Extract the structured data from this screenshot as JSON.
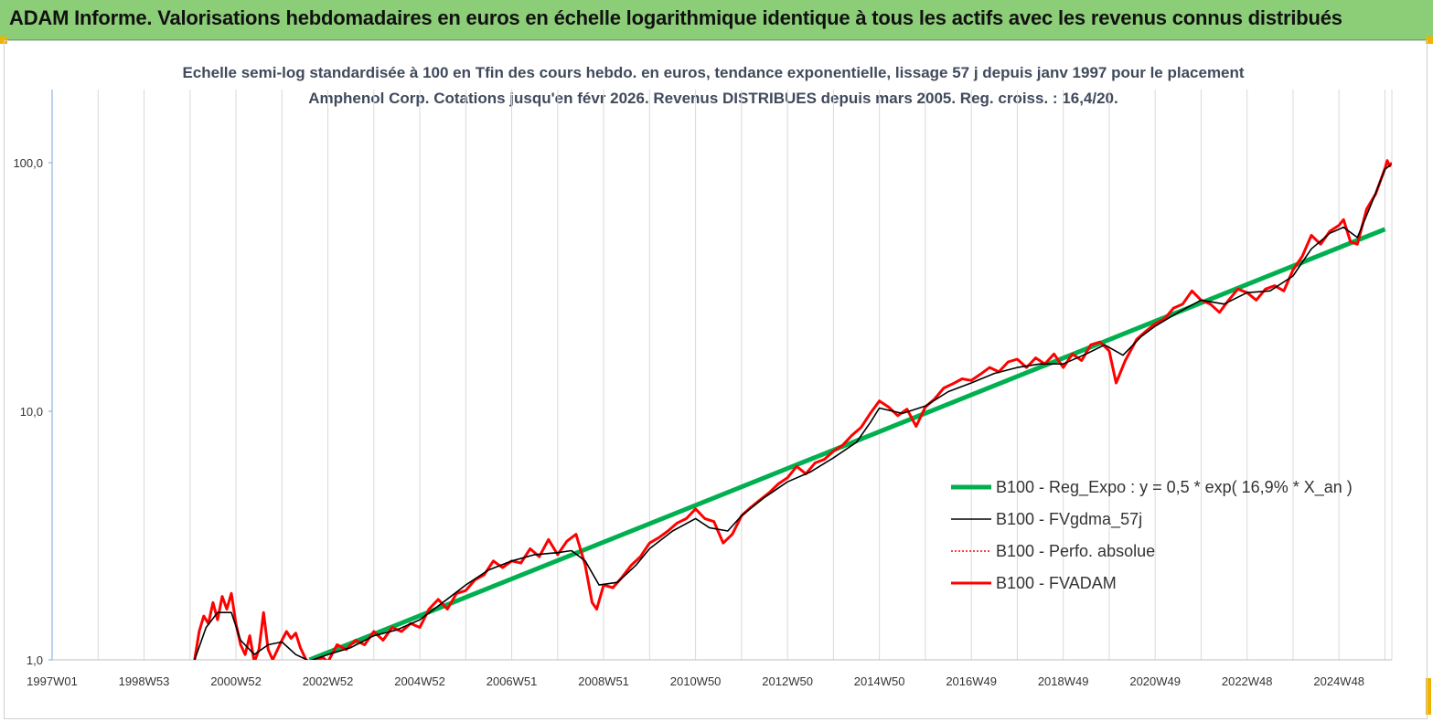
{
  "header": {
    "title": "ADAM Informe. Valorisations hebdomadaires en euros en échelle logarithmique identique à tous les actifs avec les revenus connus distribués"
  },
  "colors": {
    "banner": "#8ccd78",
    "reg_expo": "#00b050",
    "fvgdma": "#000000",
    "perfo": "#ff0000",
    "fvadam": "#ff0000",
    "grid": "#d9d9d9"
  },
  "chart_data": {
    "type": "line",
    "title": "Echelle semi-log standardisée à 100 en Tfin des cours hebdo. en euros, tendance exponentielle, lissage 57 j depuis janv 1997 pour le placement Amphenol Corp. Cotations jusqu'en févr 2026. Revenus DISTRIBUES depuis mars 2005. Reg. croiss. : 16,4/20.",
    "y_scale": "log",
    "ylim": [
      1,
      180
    ],
    "xlim": [
      1997.0,
      2026.15
    ],
    "grid": "vertical",
    "legend_position": "right",
    "y_ticks": [
      {
        "value": 1,
        "label": "1,0"
      },
      {
        "value": 10,
        "label": "10,0"
      },
      {
        "value": 100,
        "label": "100,0"
      }
    ],
    "x_ticks": [
      {
        "value": 1997.0,
        "label": "1997W01"
      },
      {
        "value": 1999.0,
        "label": "1998W53"
      },
      {
        "value": 2001.0,
        "label": "2000W52"
      },
      {
        "value": 2003.0,
        "label": "2002W52"
      },
      {
        "value": 2005.0,
        "label": "2004W52"
      },
      {
        "value": 2007.0,
        "label": "2006W51"
      },
      {
        "value": 2009.0,
        "label": "2008W51"
      },
      {
        "value": 2011.0,
        "label": "2010W50"
      },
      {
        "value": 2013.0,
        "label": "2012W50"
      },
      {
        "value": 2015.0,
        "label": "2014W50"
      },
      {
        "value": 2017.0,
        "label": "2016W49"
      },
      {
        "value": 2019.0,
        "label": "2018W49"
      },
      {
        "value": 2021.0,
        "label": "2020W49"
      },
      {
        "value": 2023.0,
        "label": "2022W48"
      },
      {
        "value": 2025.0,
        "label": "2024W48"
      }
    ],
    "series": [
      {
        "name": "B100 - Reg_Expo : y = 0,5 * exp( 16,9% *  X_an )",
        "key": "reg",
        "points": [
          [
            2002.6,
            1.0
          ],
          [
            2026.0,
            54
          ]
        ]
      },
      {
        "name": "B100 - FVgdma_57j",
        "key": "gdma",
        "points": [
          [
            2000.1,
            1.0
          ],
          [
            2000.35,
            1.35
          ],
          [
            2000.6,
            1.55
          ],
          [
            2000.9,
            1.55
          ],
          [
            2001.1,
            1.2
          ],
          [
            2001.4,
            1.05
          ],
          [
            2001.7,
            1.15
          ],
          [
            2002.0,
            1.18
          ],
          [
            2002.3,
            1.05
          ],
          [
            2002.6,
            0.99
          ],
          [
            2003.0,
            1.05
          ],
          [
            2003.5,
            1.12
          ],
          [
            2004.0,
            1.25
          ],
          [
            2004.5,
            1.32
          ],
          [
            2005.0,
            1.45
          ],
          [
            2005.5,
            1.7
          ],
          [
            2006.0,
            2.0
          ],
          [
            2006.5,
            2.3
          ],
          [
            2007.0,
            2.5
          ],
          [
            2007.5,
            2.65
          ],
          [
            2008.0,
            2.7
          ],
          [
            2008.3,
            2.75
          ],
          [
            2008.6,
            2.5
          ],
          [
            2008.9,
            2.0
          ],
          [
            2009.3,
            2.05
          ],
          [
            2009.7,
            2.4
          ],
          [
            2010.0,
            2.8
          ],
          [
            2010.5,
            3.3
          ],
          [
            2011.0,
            3.7
          ],
          [
            2011.3,
            3.4
          ],
          [
            2011.7,
            3.3
          ],
          [
            2012.0,
            3.8
          ],
          [
            2012.5,
            4.5
          ],
          [
            2013.0,
            5.2
          ],
          [
            2013.5,
            5.7
          ],
          [
            2014.0,
            6.5
          ],
          [
            2014.5,
            7.5
          ],
          [
            2014.8,
            9.0
          ],
          [
            2015.0,
            10.3
          ],
          [
            2015.5,
            9.8
          ],
          [
            2016.0,
            10.5
          ],
          [
            2016.5,
            12.0
          ],
          [
            2017.0,
            13.0
          ],
          [
            2017.5,
            14.2
          ],
          [
            2018.0,
            15.0
          ],
          [
            2018.5,
            15.5
          ],
          [
            2019.0,
            15.5
          ],
          [
            2019.5,
            17.0
          ],
          [
            2019.9,
            18.5
          ],
          [
            2020.3,
            16.8
          ],
          [
            2020.7,
            20.0
          ],
          [
            2021.0,
            22.0
          ],
          [
            2021.5,
            25.0
          ],
          [
            2022.0,
            28.0
          ],
          [
            2022.5,
            27.0
          ],
          [
            2023.0,
            30.0
          ],
          [
            2023.5,
            30.5
          ],
          [
            2024.0,
            35.0
          ],
          [
            2024.4,
            45.0
          ],
          [
            2024.8,
            52.0
          ],
          [
            2025.1,
            55.0
          ],
          [
            2025.4,
            50.0
          ],
          [
            2025.7,
            68.0
          ],
          [
            2026.0,
            94.0
          ],
          [
            2026.12,
            98.0
          ]
        ]
      },
      {
        "name": "B100 - Perfo. absolue",
        "key": "perfo",
        "points": []
      },
      {
        "name": "B100 - FVADAM",
        "key": "fvadam",
        "points": [
          [
            2000.1,
            1.0
          ],
          [
            2000.2,
            1.3
          ],
          [
            2000.3,
            1.5
          ],
          [
            2000.4,
            1.4
          ],
          [
            2000.5,
            1.7
          ],
          [
            2000.6,
            1.45
          ],
          [
            2000.7,
            1.8
          ],
          [
            2000.8,
            1.6
          ],
          [
            2000.9,
            1.85
          ],
          [
            2001.0,
            1.4
          ],
          [
            2001.1,
            1.15
          ],
          [
            2001.2,
            1.05
          ],
          [
            2001.3,
            1.25
          ],
          [
            2001.4,
            0.98
          ],
          [
            2001.5,
            1.1
          ],
          [
            2001.6,
            1.55
          ],
          [
            2001.7,
            1.1
          ],
          [
            2001.8,
            1.0
          ],
          [
            2002.0,
            1.2
          ],
          [
            2002.1,
            1.3
          ],
          [
            2002.2,
            1.22
          ],
          [
            2002.3,
            1.28
          ],
          [
            2002.4,
            1.12
          ],
          [
            2002.55,
            0.98
          ],
          [
            2002.7,
            1.0
          ],
          [
            2002.9,
            1.02
          ],
          [
            2003.0,
            0.98
          ],
          [
            2003.2,
            1.15
          ],
          [
            2003.4,
            1.1
          ],
          [
            2003.6,
            1.2
          ],
          [
            2003.8,
            1.15
          ],
          [
            2004.0,
            1.3
          ],
          [
            2004.2,
            1.2
          ],
          [
            2004.4,
            1.35
          ],
          [
            2004.6,
            1.3
          ],
          [
            2004.8,
            1.4
          ],
          [
            2005.0,
            1.35
          ],
          [
            2005.2,
            1.6
          ],
          [
            2005.4,
            1.75
          ],
          [
            2005.6,
            1.6
          ],
          [
            2005.8,
            1.85
          ],
          [
            2006.0,
            1.9
          ],
          [
            2006.2,
            2.1
          ],
          [
            2006.4,
            2.2
          ],
          [
            2006.6,
            2.5
          ],
          [
            2006.8,
            2.35
          ],
          [
            2007.0,
            2.5
          ],
          [
            2007.2,
            2.45
          ],
          [
            2007.4,
            2.8
          ],
          [
            2007.6,
            2.6
          ],
          [
            2007.8,
            3.05
          ],
          [
            2008.0,
            2.65
          ],
          [
            2008.2,
            3.0
          ],
          [
            2008.4,
            3.2
          ],
          [
            2008.6,
            2.4
          ],
          [
            2008.75,
            1.7
          ],
          [
            2008.85,
            1.6
          ],
          [
            2009.0,
            2.0
          ],
          [
            2009.2,
            1.95
          ],
          [
            2009.4,
            2.15
          ],
          [
            2009.6,
            2.4
          ],
          [
            2009.8,
            2.6
          ],
          [
            2010.0,
            2.95
          ],
          [
            2010.2,
            3.1
          ],
          [
            2010.4,
            3.3
          ],
          [
            2010.6,
            3.55
          ],
          [
            2010.8,
            3.7
          ],
          [
            2011.0,
            4.05
          ],
          [
            2011.2,
            3.7
          ],
          [
            2011.4,
            3.6
          ],
          [
            2011.6,
            2.95
          ],
          [
            2011.8,
            3.2
          ],
          [
            2012.0,
            3.8
          ],
          [
            2012.2,
            4.1
          ],
          [
            2012.4,
            4.4
          ],
          [
            2012.6,
            4.7
          ],
          [
            2012.8,
            5.1
          ],
          [
            2013.0,
            5.4
          ],
          [
            2013.2,
            6.0
          ],
          [
            2013.4,
            5.6
          ],
          [
            2013.6,
            6.2
          ],
          [
            2013.8,
            6.4
          ],
          [
            2014.0,
            6.9
          ],
          [
            2014.2,
            7.3
          ],
          [
            2014.4,
            8.0
          ],
          [
            2014.6,
            8.6
          ],
          [
            2014.8,
            9.8
          ],
          [
            2015.0,
            11.0
          ],
          [
            2015.2,
            10.4
          ],
          [
            2015.4,
            9.6
          ],
          [
            2015.6,
            10.2
          ],
          [
            2015.8,
            8.7
          ],
          [
            2016.0,
            10.4
          ],
          [
            2016.2,
            11.2
          ],
          [
            2016.4,
            12.4
          ],
          [
            2016.6,
            12.9
          ],
          [
            2016.8,
            13.5
          ],
          [
            2017.0,
            13.3
          ],
          [
            2017.2,
            14.1
          ],
          [
            2017.4,
            15.0
          ],
          [
            2017.6,
            14.4
          ],
          [
            2017.8,
            15.8
          ],
          [
            2018.0,
            16.2
          ],
          [
            2018.2,
            15.0
          ],
          [
            2018.4,
            16.4
          ],
          [
            2018.6,
            15.5
          ],
          [
            2018.8,
            17.0
          ],
          [
            2019.0,
            15.0
          ],
          [
            2019.2,
            17.0
          ],
          [
            2019.4,
            16.0
          ],
          [
            2019.6,
            18.5
          ],
          [
            2019.8,
            19.0
          ],
          [
            2020.0,
            17.5
          ],
          [
            2020.15,
            13.0
          ],
          [
            2020.35,
            16.0
          ],
          [
            2020.6,
            19.5
          ],
          [
            2020.8,
            21.0
          ],
          [
            2021.0,
            22.5
          ],
          [
            2021.2,
            23.5
          ],
          [
            2021.4,
            26.0
          ],
          [
            2021.6,
            27.0
          ],
          [
            2021.8,
            30.5
          ],
          [
            2022.0,
            28.0
          ],
          [
            2022.2,
            27.0
          ],
          [
            2022.4,
            25.0
          ],
          [
            2022.6,
            28.0
          ],
          [
            2022.8,
            31.0
          ],
          [
            2023.0,
            30.0
          ],
          [
            2023.2,
            28.0
          ],
          [
            2023.4,
            31.0
          ],
          [
            2023.6,
            32.0
          ],
          [
            2023.8,
            30.5
          ],
          [
            2024.0,
            37.0
          ],
          [
            2024.2,
            42.0
          ],
          [
            2024.4,
            51.0
          ],
          [
            2024.6,
            47.0
          ],
          [
            2024.8,
            53.0
          ],
          [
            2025.0,
            56.0
          ],
          [
            2025.1,
            59.0
          ],
          [
            2025.25,
            48.0
          ],
          [
            2025.4,
            47.0
          ],
          [
            2025.6,
            65.0
          ],
          [
            2025.8,
            75.0
          ],
          [
            2026.0,
            95.0
          ],
          [
            2026.05,
            102.0
          ],
          [
            2026.1,
            97.0
          ],
          [
            2026.15,
            100.0
          ]
        ]
      }
    ]
  }
}
